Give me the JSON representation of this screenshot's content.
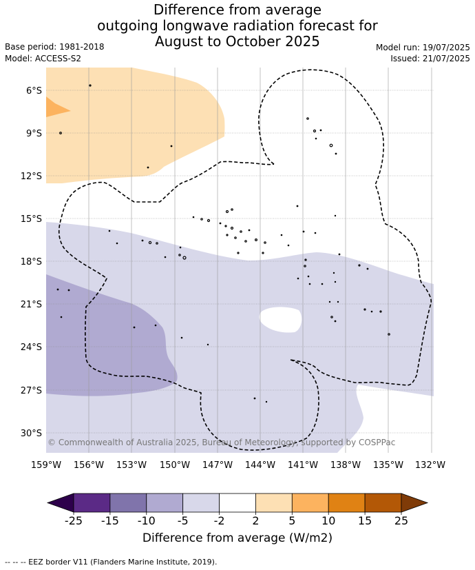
{
  "header": {
    "title_lines": [
      "Difference from average",
      "outgoing longwave radiation forecast for",
      "August to October 2025"
    ],
    "base_period": "Base period: 1981-2018",
    "model": "Model: ACCESS-S2",
    "model_run": "Model run: 19/07/2025",
    "issued": "Issued: 21/07/2025"
  },
  "map": {
    "lat_labels": [
      "6°S",
      "9°S",
      "12°S",
      "15°S",
      "18°S",
      "21°S",
      "24°S",
      "27°S",
      "30°S"
    ],
    "lon_labels": [
      "159°W",
      "156°W",
      "153°W",
      "150°W",
      "147°W",
      "144°W",
      "141°W",
      "138°W",
      "135°W",
      "132°W"
    ],
    "copyright": "© Commonwealth of Australia 2025, Bureau of Meteorology, supported by COSPPac"
  },
  "colorbar": {
    "ticks": [
      "-25",
      "-15",
      "-10",
      "-5",
      "-2",
      "2",
      "5",
      "10",
      "15",
      "25"
    ],
    "colors": [
      "#5b2a86",
      "#8074ab",
      "#b0aad1",
      "#d8d8ea",
      "#ffffff",
      "#fde0b4",
      "#fcb35f",
      "#e08214",
      "#b35806"
    ],
    "low_extend_color": "#2d004b",
    "high_extend_color": "#7f3b08",
    "title": "Difference from average (W/m2)"
  },
  "footnote": "--  --  -- EEZ border V11 (Flanders Marine Institute, 2019)."
}
